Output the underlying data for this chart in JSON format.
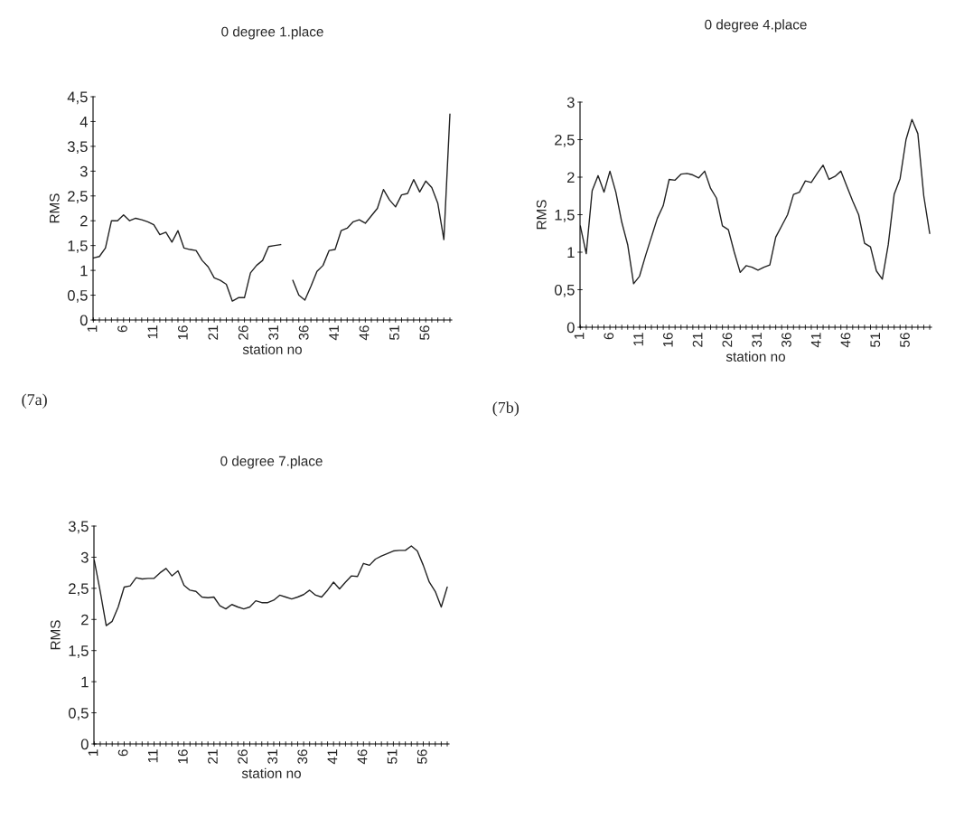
{
  "chart_data": [
    {
      "type": "line",
      "title": "0 degree 1.place",
      "xlabel": "station no",
      "ylabel": "RMS",
      "annotations": [
        "(7a)"
      ],
      "categories": [
        "1",
        null,
        null,
        null,
        null,
        "6",
        null,
        null,
        null,
        null,
        "11",
        null,
        null,
        null,
        null,
        "16",
        null,
        null,
        null,
        null,
        "21",
        null,
        null,
        null,
        null,
        "26",
        null,
        null,
        null,
        null,
        "31",
        null,
        null,
        null,
        null,
        "36",
        null,
        null,
        null,
        null,
        "41",
        null,
        null,
        null,
        null,
        "46",
        null,
        null,
        null,
        null,
        "51",
        null,
        null,
        null,
        null,
        "56",
        null,
        null,
        null,
        null
      ],
      "series": [
        {
          "color": "#222222",
          "values": [
            1.25,
            1.28,
            1.45,
            2.0,
            2.0,
            2.12,
            2.0,
            2.05,
            2.02,
            1.98,
            1.92,
            1.72,
            1.77,
            1.57,
            1.8,
            1.45,
            1.42,
            1.4,
            1.2,
            1.07,
            0.85,
            0.8,
            0.72,
            0.38,
            0.45,
            0.45,
            0.95,
            1.1,
            1.2,
            1.48,
            1.5,
            1.52,
            null,
            0.8,
            0.5,
            0.4,
            0.68,
            0.98,
            1.1,
            1.4,
            1.42,
            1.8,
            1.85,
            1.98,
            2.02,
            1.95,
            2.1,
            2.25,
            2.63,
            2.42,
            2.28,
            2.52,
            2.55,
            2.83,
            2.58,
            2.8,
            2.67,
            2.35,
            1.62,
            4.15
          ]
        }
      ],
      "ylim": [
        0,
        4.5
      ],
      "yticks": [
        0,
        {
          "value": 0.5,
          "label": "0,5"
        },
        1,
        {
          "value": 1.5,
          "label": "1,5"
        },
        2,
        {
          "value": 2.5,
          "label": "2,5"
        },
        3,
        {
          "value": 3.5,
          "label": "3,5"
        },
        4,
        {
          "value": 4.5,
          "label": "4,5"
        }
      ],
      "grid": false,
      "marker": "none",
      "line_style": "solid"
    },
    {
      "type": "line",
      "title": "0 degree 4.place",
      "xlabel": "station no",
      "ylabel": "RMS",
      "annotations": [
        "(7b)"
      ],
      "categories": [
        "1",
        null,
        null,
        null,
        null,
        "6",
        null,
        null,
        null,
        null,
        "11",
        null,
        null,
        null,
        null,
        "16",
        null,
        null,
        null,
        null,
        "21",
        null,
        null,
        null,
        null,
        "26",
        null,
        null,
        null,
        null,
        "31",
        null,
        null,
        null,
        null,
        "36",
        null,
        null,
        null,
        null,
        "41",
        null,
        null,
        null,
        null,
        "46",
        null,
        null,
        null,
        null,
        "51",
        null,
        null,
        null,
        null,
        "56",
        null,
        null,
        null,
        null
      ],
      "series": [
        {
          "color": "#222222",
          "values": [
            1.35,
            0.98,
            1.82,
            2.02,
            1.8,
            2.08,
            1.8,
            1.4,
            1.1,
            0.58,
            0.68,
            0.95,
            1.2,
            1.45,
            1.62,
            1.97,
            1.96,
            2.04,
            2.05,
            2.03,
            1.99,
            2.08,
            1.85,
            1.72,
            1.35,
            1.3,
            1.0,
            0.73,
            0.82,
            0.8,
            0.76,
            0.8,
            0.83,
            1.2,
            1.35,
            1.5,
            1.77,
            1.8,
            1.95,
            1.93,
            2.05,
            2.16,
            1.97,
            2.01,
            2.08,
            1.88,
            1.68,
            1.5,
            1.12,
            1.07,
            0.75,
            0.64,
            1.1,
            1.77,
            1.98,
            2.5,
            2.77,
            2.58,
            1.75,
            1.25
          ]
        }
      ],
      "ylim": [
        0,
        3
      ],
      "yticks": [
        0,
        {
          "value": 0.5,
          "label": "0,5"
        },
        1,
        {
          "value": 1.5,
          "label": "1,5"
        },
        2,
        {
          "value": 2.5,
          "label": "2,5"
        },
        3
      ],
      "grid": false,
      "marker": "none",
      "line_style": "solid"
    },
    {
      "type": "line",
      "title": "0 degree 7.place",
      "xlabel": "station no",
      "ylabel": "RMS",
      "categories": [
        "1",
        null,
        null,
        null,
        null,
        "6",
        null,
        null,
        null,
        null,
        "11",
        null,
        null,
        null,
        null,
        "16",
        null,
        null,
        null,
        null,
        "21",
        null,
        null,
        null,
        null,
        "26",
        null,
        null,
        null,
        null,
        "31",
        null,
        null,
        null,
        null,
        "36",
        null,
        null,
        null,
        null,
        "41",
        null,
        null,
        null,
        null,
        "46",
        null,
        null,
        null,
        null,
        "51",
        null,
        null,
        null,
        null,
        "56",
        null,
        null,
        null,
        null
      ],
      "series": [
        {
          "color": "#222222",
          "values": [
            2.95,
            2.45,
            1.9,
            1.97,
            2.2,
            2.52,
            2.54,
            2.67,
            2.65,
            2.66,
            2.66,
            2.75,
            2.82,
            2.7,
            2.78,
            2.55,
            2.47,
            2.45,
            2.36,
            2.35,
            2.36,
            2.22,
            2.17,
            2.24,
            2.2,
            2.17,
            2.2,
            2.3,
            2.27,
            2.27,
            2.31,
            2.39,
            2.36,
            2.33,
            2.36,
            2.4,
            2.47,
            2.39,
            2.36,
            2.47,
            2.6,
            2.49,
            2.6,
            2.7,
            2.69,
            2.9,
            2.87,
            2.97,
            3.02,
            3.06,
            3.1,
            3.11,
            3.11,
            3.18,
            3.1,
            2.87,
            2.6,
            2.45,
            2.2,
            2.52
          ]
        }
      ],
      "ylim": [
        0,
        3.5
      ],
      "yticks": [
        0,
        {
          "value": 0.5,
          "label": "0,5"
        },
        1,
        {
          "value": 1.5,
          "label": "1,5"
        },
        2,
        {
          "value": 2.5,
          "label": "2,5"
        },
        3,
        {
          "value": 3.5,
          "label": "3,5"
        }
      ],
      "grid": false,
      "marker": "none",
      "line_style": "solid"
    }
  ]
}
